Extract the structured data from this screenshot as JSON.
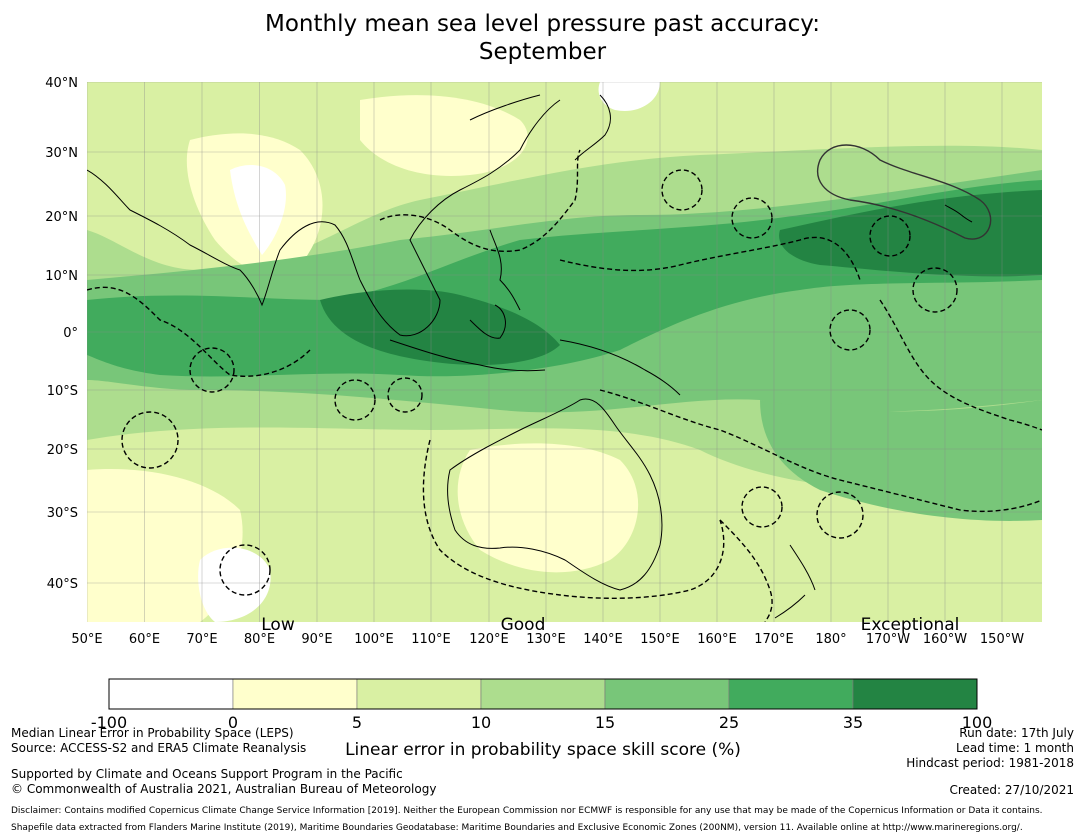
{
  "title": {
    "line1": "Monthly mean sea level pressure past accuracy:",
    "line2": "September"
  },
  "map": {
    "lon_labels": [
      "50°E",
      "60°E",
      "70°E",
      "80°E",
      "90°E",
      "100°E",
      "110°E",
      "120°E",
      "130°E",
      "140°E",
      "150°E",
      "160°E",
      "170°E",
      "180°",
      "170°W",
      "160°W",
      "150°W"
    ],
    "lat_labels": [
      "40°N",
      "30°N",
      "20°N",
      "10°N",
      "0°",
      "10°S",
      "20°S",
      "30°S",
      "40°S"
    ],
    "category_labels": [
      "Low",
      "Good",
      "Exceptional"
    ],
    "colors": {
      "c_neg100_0": "#ffffff",
      "c_0_5": "#ffffcc",
      "c_5_10": "#d9f0a3",
      "c_10_15": "#addd8e",
      "c_15_25": "#78c679",
      "c_25_35": "#41ab5d",
      "c_35_100": "#238443",
      "land_outline": "#000000",
      "eez_boundary": "#000000"
    }
  },
  "colorbar": {
    "ticks": [
      "-100",
      "0",
      "5",
      "10",
      "15",
      "25",
      "35",
      "100"
    ],
    "label": "Linear error in probability space skill score (%)"
  },
  "footer": {
    "left": [
      "Median Linear Error in Probability Space (LEPS)",
      "Source: ACCESS-S2 and ERA5 Climate Reanalysis"
    ],
    "support": [
      "Supported by Climate and Oceans Support Program in the Pacific",
      "© Commonwealth of Australia 2021, Australian Bureau of Meteorology"
    ],
    "right": [
      "Run date: 17th July",
      "Lead time: 1 month",
      "Hindcast period: 1981-2018"
    ],
    "created": "Created: 27/10/2021",
    "disclaimer": [
      "Disclaimer: Contains modified Copernicus Climate Change Service Information [2019]. Neither the European Commission nor ECMWF is responsible for any use that may be made of the Copernicus Information or Data it contains.",
      "Shapefile data extracted from Flanders Marine Institute (2019), Maritime Boundaries Geodatabase: Maritime Boundaries and Exclusive Economic Zones (200NM), version 11. Available online at http://www.marineregions.org/."
    ]
  }
}
